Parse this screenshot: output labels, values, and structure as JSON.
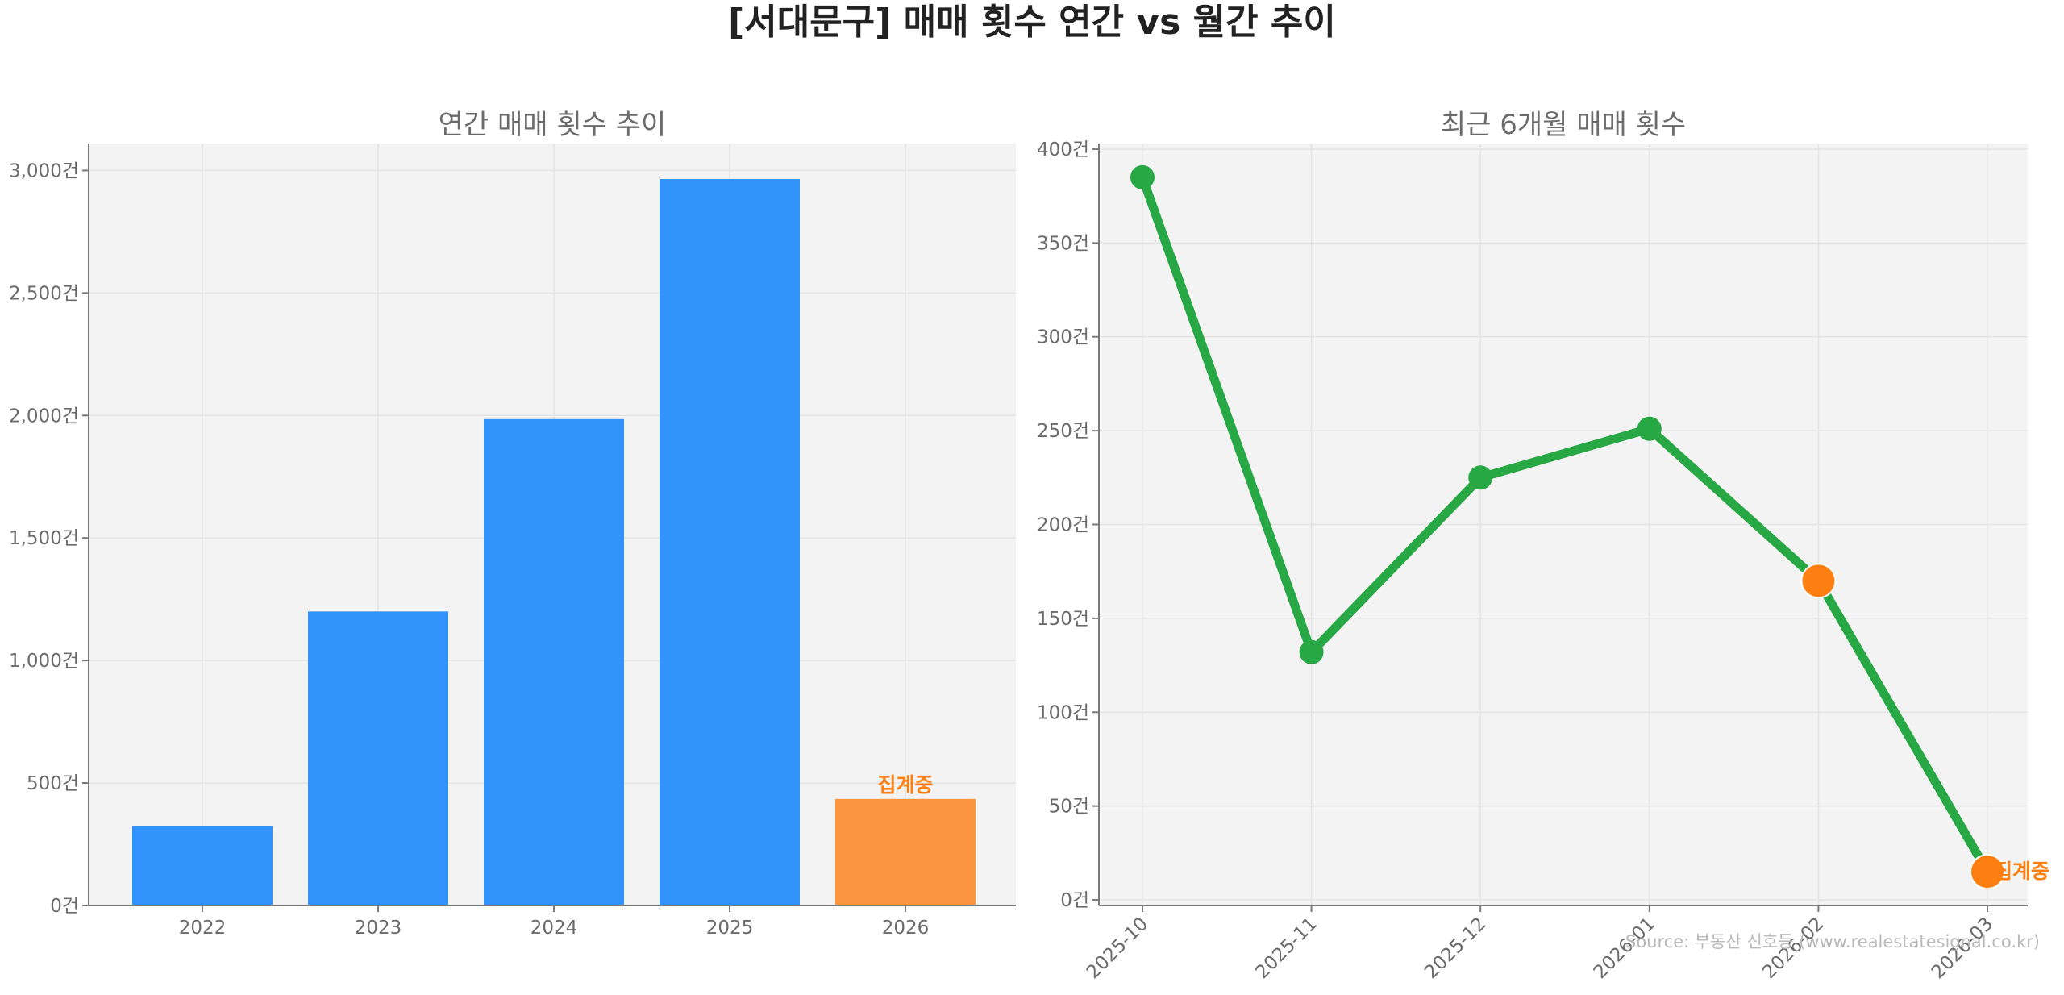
{
  "title": "[서대문구] 매매 횟수 연간 vs 월간 추이",
  "source": "Source: 부동산 신호등 (www.realestatesignal.co.kr)",
  "colors": {
    "bar": "#3192fb",
    "bar_partial": "#f9963f",
    "line": "#28a745",
    "partial_marker": "#fd7f12",
    "partial_text": "#fd7f12"
  },
  "chart_data": [
    {
      "type": "bar",
      "title": "연간 매매 횟수 추이",
      "categories": [
        "2022",
        "2023",
        "2024",
        "2025",
        "2026"
      ],
      "values": [
        325,
        1200,
        1985,
        2965,
        435
      ],
      "partial_index": 4,
      "partial_label": "집계중",
      "ylim": [
        0,
        3110
      ],
      "yticks": [
        0,
        500,
        1000,
        1500,
        2000,
        2500,
        3000
      ],
      "ytick_labels": [
        "0건",
        "500건",
        "1,000건",
        "1,500건",
        "2,000건",
        "2,500건",
        "3,000건"
      ],
      "grid": true
    },
    {
      "type": "line",
      "title": "최근 6개월 매매 횟수",
      "categories": [
        "2025-10",
        "2025-11",
        "2025-12",
        "2026-01",
        "2026-02",
        "2026-03"
      ],
      "values": [
        385,
        132,
        225,
        251,
        170,
        15
      ],
      "partial_indices": [
        4,
        5
      ],
      "partial_label": "집계중",
      "ylim": [
        -3,
        403
      ],
      "yticks": [
        0,
        50,
        100,
        150,
        200,
        250,
        300,
        350,
        400
      ],
      "ytick_labels": [
        "0건",
        "50건",
        "100건",
        "150건",
        "200건",
        "250건",
        "300건",
        "350건",
        "400건"
      ],
      "grid": true
    }
  ]
}
